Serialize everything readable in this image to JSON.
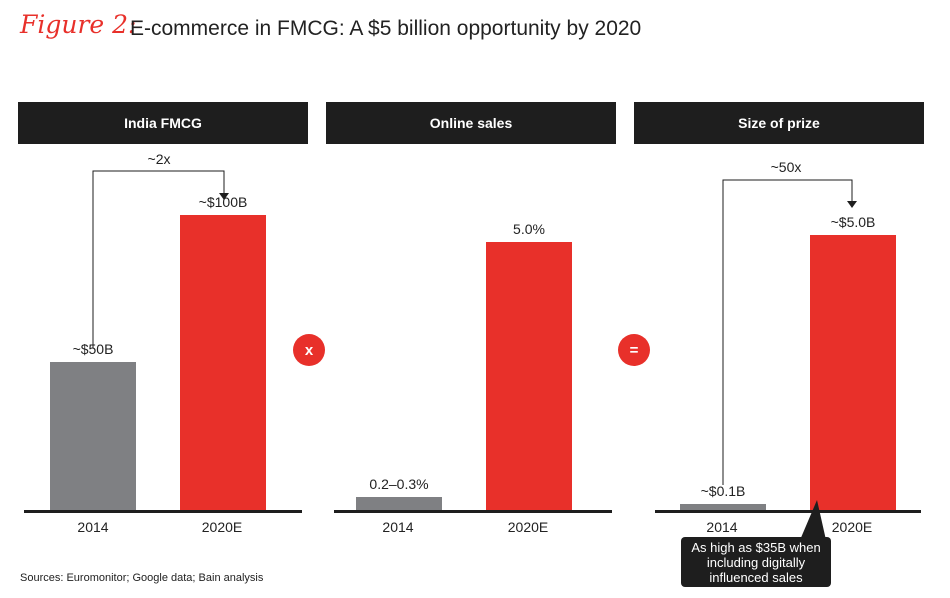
{
  "figure": {
    "label": "Figure 2:",
    "title": "E-commerce in FMCG: A $5 billion opportunity by 2020"
  },
  "colors": {
    "red": "#e8302a",
    "gray": "#7f8083",
    "dark": "#1e1e1e"
  },
  "operators": {
    "multiply": "x",
    "equals": "="
  },
  "chart_data": [
    {
      "type": "bar",
      "title": "India FMCG",
      "categories": [
        "2014",
        "2020E"
      ],
      "values": [
        50,
        100
      ],
      "unit": "$B",
      "value_labels": [
        "~$50B",
        "~$100B"
      ],
      "bar_colors": [
        "#7f8083",
        "#e8302a"
      ],
      "ylim": [
        0,
        110
      ],
      "growth_annotation": "~2x"
    },
    {
      "type": "bar",
      "title": "Online sales",
      "categories": [
        "2014",
        "2020E"
      ],
      "values": [
        0.25,
        5.0
      ],
      "unit": "%",
      "value_labels": [
        "0.2–0.3%",
        "5.0%"
      ],
      "bar_colors": [
        "#7f8083",
        "#e8302a"
      ],
      "ylim": [
        0,
        5.6
      ]
    },
    {
      "type": "bar",
      "title": "Size of prize",
      "categories": [
        "2014",
        "2020E"
      ],
      "values": [
        0.1,
        5.0
      ],
      "unit": "$B",
      "value_labels": [
        "~$0.1B",
        "~$5.0B"
      ],
      "bar_colors": [
        "#7f8083",
        "#e8302a"
      ],
      "ylim": [
        0,
        5.6
      ],
      "growth_annotation": "~50x",
      "callout": "As high as $35B when including digitally influenced sales"
    }
  ],
  "sources": "Sources: Euromonitor; Google data; Bain analysis"
}
